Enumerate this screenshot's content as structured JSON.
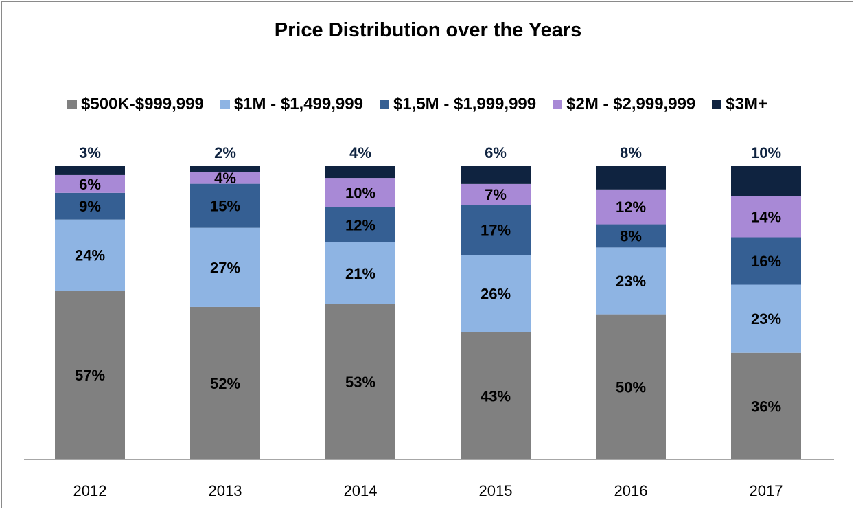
{
  "chart_data": {
    "type": "bar",
    "stacked": true,
    "title": "Price Distribution over the Years",
    "xlabel": "",
    "ylabel": "",
    "categories": [
      "2012",
      "2013",
      "2014",
      "2015",
      "2016",
      "2017"
    ],
    "series": [
      {
        "name": "$500K-$999,999",
        "color": "#808080",
        "label_color": "#000000",
        "values": [
          57,
          52,
          53,
          43,
          50,
          36
        ]
      },
      {
        "name": "$1M - $1,499,999",
        "color": "#8eb4e3",
        "label_color": "#000000",
        "values": [
          24,
          27,
          21,
          26,
          23,
          23
        ]
      },
      {
        "name": "$1,5M - $1,999,999",
        "color": "#355f93",
        "label_color": "#000000",
        "values": [
          9,
          15,
          12,
          17,
          8,
          16
        ]
      },
      {
        "name": "$2M - $2,999,999",
        "color": "#a889d6",
        "label_color": "#000000",
        "values": [
          6,
          4,
          10,
          7,
          12,
          14
        ]
      },
      {
        "name": "$3M+",
        "color": "#0f2340",
        "label_color": "#0f2340",
        "values": [
          3,
          2,
          4,
          6,
          8,
          10
        ]
      }
    ],
    "value_suffix": "%",
    "ylim": [
      0,
      100
    ],
    "grid": false,
    "legend_position": "top"
  }
}
